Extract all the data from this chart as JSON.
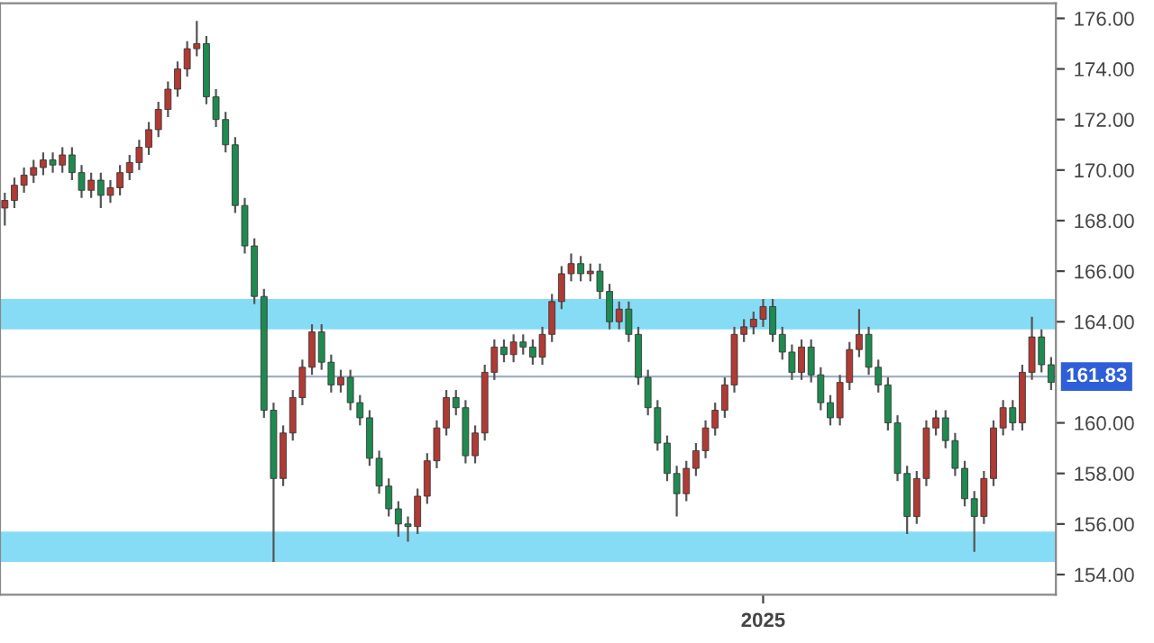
{
  "chart_data": {
    "type": "candlestick",
    "categories": [
      null,
      null,
      null,
      null,
      null,
      null,
      null,
      null,
      null,
      null,
      null,
      null,
      null,
      null,
      null,
      null,
      null,
      null,
      null,
      null,
      null,
      null,
      null,
      null,
      null,
      null,
      null,
      null,
      null,
      null,
      null,
      null,
      null,
      null,
      null,
      null,
      null,
      null,
      null,
      null,
      null,
      null,
      null,
      null,
      null,
      null,
      null,
      null,
      null,
      null,
      null,
      null,
      null,
      null,
      null,
      null,
      null,
      null,
      null,
      null,
      null,
      null,
      null,
      null,
      null,
      null,
      null,
      null,
      null,
      null,
      null,
      null,
      null,
      null,
      null,
      null,
      null,
      null,
      null,
      "2025",
      null,
      null,
      null,
      null,
      null,
      null,
      null,
      null,
      null,
      null,
      null,
      null,
      null,
      null,
      null,
      null,
      null,
      null,
      null,
      null,
      null,
      null,
      null,
      null,
      null,
      null,
      null,
      null,
      null,
      null
    ],
    "ohlc": [
      [
        168.5,
        169.1,
        167.8,
        168.8
      ],
      [
        168.8,
        169.7,
        168.5,
        169.4
      ],
      [
        169.4,
        170.1,
        169.1,
        169.8
      ],
      [
        169.8,
        170.4,
        169.5,
        170.1
      ],
      [
        170.1,
        170.7,
        169.8,
        170.4
      ],
      [
        170.4,
        170.7,
        169.9,
        170.2
      ],
      [
        170.2,
        170.9,
        169.9,
        170.6
      ],
      [
        170.6,
        170.9,
        169.6,
        169.9
      ],
      [
        169.9,
        170.2,
        168.9,
        169.2
      ],
      [
        169.2,
        169.9,
        168.9,
        169.6
      ],
      [
        169.6,
        169.9,
        168.5,
        169.0
      ],
      [
        169.0,
        169.6,
        168.7,
        169.3
      ],
      [
        169.3,
        170.2,
        169.0,
        169.9
      ],
      [
        169.9,
        170.6,
        169.6,
        170.3
      ],
      [
        170.3,
        171.2,
        170.0,
        170.9
      ],
      [
        170.9,
        171.9,
        170.6,
        171.6
      ],
      [
        171.6,
        172.7,
        171.3,
        172.4
      ],
      [
        172.4,
        173.5,
        172.1,
        173.2
      ],
      [
        173.2,
        174.3,
        172.9,
        174.0
      ],
      [
        174.0,
        175.1,
        173.7,
        174.8
      ],
      [
        174.8,
        175.9,
        174.5,
        175.0
      ],
      [
        175.0,
        175.3,
        172.6,
        172.9
      ],
      [
        172.9,
        173.2,
        171.7,
        172.0
      ],
      [
        172.0,
        172.3,
        170.7,
        171.0
      ],
      [
        171.0,
        171.3,
        168.3,
        168.6
      ],
      [
        168.6,
        168.9,
        166.7,
        167.0
      ],
      [
        167.0,
        167.3,
        164.7,
        165.0
      ],
      [
        165.0,
        165.3,
        160.2,
        160.5
      ],
      [
        160.5,
        160.8,
        154.5,
        157.8
      ],
      [
        157.8,
        159.9,
        157.5,
        159.6
      ],
      [
        159.6,
        161.3,
        159.3,
        161.0
      ],
      [
        161.0,
        162.5,
        160.7,
        162.2
      ],
      [
        162.2,
        163.9,
        161.9,
        163.6
      ],
      [
        163.6,
        163.9,
        162.1,
        162.4
      ],
      [
        162.4,
        162.7,
        161.2,
        161.5
      ],
      [
        161.5,
        162.1,
        161.2,
        161.8
      ],
      [
        161.8,
        162.1,
        160.5,
        160.8
      ],
      [
        160.8,
        161.1,
        159.9,
        160.2
      ],
      [
        160.2,
        160.5,
        158.3,
        158.6
      ],
      [
        158.6,
        158.9,
        157.2,
        157.5
      ],
      [
        157.5,
        157.8,
        156.3,
        156.6
      ],
      [
        156.6,
        156.9,
        155.5,
        156.0
      ],
      [
        156.0,
        156.3,
        155.3,
        155.9
      ],
      [
        155.9,
        157.4,
        155.6,
        157.1
      ],
      [
        157.1,
        158.8,
        156.8,
        158.5
      ],
      [
        158.5,
        160.1,
        158.2,
        159.8
      ],
      [
        159.8,
        161.3,
        159.5,
        161.0
      ],
      [
        161.0,
        161.3,
        160.3,
        160.6
      ],
      [
        160.6,
        160.9,
        158.4,
        158.7
      ],
      [
        158.7,
        159.9,
        158.4,
        159.6
      ],
      [
        159.6,
        162.3,
        159.3,
        162.0
      ],
      [
        162.0,
        163.3,
        161.7,
        163.0
      ],
      [
        163.0,
        163.3,
        162.4,
        162.7
      ],
      [
        162.7,
        163.5,
        162.4,
        163.2
      ],
      [
        163.2,
        163.5,
        162.7,
        163.0
      ],
      [
        163.0,
        163.3,
        162.3,
        162.6
      ],
      [
        162.6,
        163.8,
        162.3,
        163.5
      ],
      [
        163.5,
        165.1,
        163.2,
        164.8
      ],
      [
        164.8,
        166.2,
        164.5,
        165.9
      ],
      [
        165.9,
        166.7,
        165.6,
        166.3
      ],
      [
        166.3,
        166.6,
        165.6,
        165.9
      ],
      [
        165.9,
        166.3,
        165.6,
        166.0
      ],
      [
        166.0,
        166.3,
        164.9,
        165.2
      ],
      [
        165.2,
        165.5,
        163.7,
        164.0
      ],
      [
        164.0,
        164.8,
        163.7,
        164.5
      ],
      [
        164.5,
        164.8,
        163.2,
        163.5
      ],
      [
        163.5,
        163.8,
        161.5,
        161.8
      ],
      [
        161.8,
        162.1,
        160.3,
        160.6
      ],
      [
        160.6,
        160.9,
        158.9,
        159.2
      ],
      [
        159.2,
        159.5,
        157.7,
        158.0
      ],
      [
        158.0,
        158.3,
        156.3,
        157.2
      ],
      [
        157.2,
        158.5,
        156.9,
        158.2
      ],
      [
        158.2,
        159.2,
        157.9,
        158.9
      ],
      [
        158.9,
        160.1,
        158.6,
        159.8
      ],
      [
        159.8,
        160.8,
        159.5,
        160.5
      ],
      [
        160.5,
        161.8,
        160.2,
        161.5
      ],
      [
        161.5,
        163.8,
        161.2,
        163.5
      ],
      [
        163.5,
        164.1,
        163.2,
        163.8
      ],
      [
        163.8,
        164.4,
        163.5,
        164.1
      ],
      [
        164.1,
        164.9,
        163.8,
        164.6
      ],
      [
        164.6,
        164.9,
        163.2,
        163.5
      ],
      [
        163.5,
        163.8,
        162.5,
        162.8
      ],
      [
        162.8,
        163.1,
        161.7,
        162.0
      ],
      [
        162.0,
        163.3,
        161.7,
        163.0
      ],
      [
        163.0,
        163.3,
        161.6,
        161.9
      ],
      [
        161.9,
        162.2,
        160.5,
        160.8
      ],
      [
        160.8,
        161.1,
        159.9,
        160.2
      ],
      [
        160.2,
        161.9,
        159.9,
        161.6
      ],
      [
        161.6,
        163.2,
        161.3,
        162.9
      ],
      [
        162.9,
        164.5,
        162.6,
        163.5
      ],
      [
        163.5,
        163.8,
        161.9,
        162.2
      ],
      [
        162.2,
        162.5,
        161.2,
        161.5
      ],
      [
        161.5,
        161.8,
        159.7,
        160.0
      ],
      [
        160.0,
        160.3,
        157.7,
        158.0
      ],
      [
        158.0,
        158.3,
        155.6,
        156.3
      ],
      [
        156.3,
        158.1,
        156.0,
        157.8
      ],
      [
        157.8,
        160.1,
        157.5,
        159.8
      ],
      [
        159.8,
        160.5,
        159.5,
        160.2
      ],
      [
        160.2,
        160.5,
        159.0,
        159.3
      ],
      [
        159.3,
        159.6,
        157.9,
        158.2
      ],
      [
        158.2,
        158.5,
        156.7,
        157.0
      ],
      [
        157.0,
        157.3,
        154.9,
        156.3
      ],
      [
        156.3,
        158.1,
        156.0,
        157.8
      ],
      [
        157.8,
        160.1,
        157.5,
        159.8
      ],
      [
        159.8,
        160.9,
        159.5,
        160.6
      ],
      [
        160.6,
        160.9,
        159.7,
        160.0
      ],
      [
        160.0,
        162.3,
        159.7,
        162.0
      ],
      [
        162.0,
        164.2,
        161.7,
        163.4
      ],
      [
        163.4,
        163.7,
        162.0,
        162.3
      ],
      [
        162.3,
        162.6,
        161.3,
        161.6
      ]
    ],
    "colors": [
      "#b03a34",
      "#b03a34",
      "#b03a34",
      "#b03a34",
      "#b03a34",
      "#1f8a50",
      "#b03a34",
      "#1f8a50",
      "#1f8a50",
      "#b03a34",
      "#1f8a50",
      "#b03a34",
      "#b03a34",
      "#b03a34",
      "#b03a34",
      "#b03a34",
      "#b03a34",
      "#b03a34",
      "#b03a34",
      "#b03a34",
      "#b03a34",
      "#1f8a50",
      "#1f8a50",
      "#1f8a50",
      "#1f8a50",
      "#1f8a50",
      "#1f8a50",
      "#1f8a50",
      "#1f8a50",
      "#b03a34",
      "#b03a34",
      "#b03a34",
      "#b03a34",
      "#1f8a50",
      "#1f8a50",
      "#b03a34",
      "#1f8a50",
      "#1f8a50",
      "#1f8a50",
      "#1f8a50",
      "#1f8a50",
      "#1f8a50",
      "#1f8a50",
      "#b03a34",
      "#b03a34",
      "#b03a34",
      "#b03a34",
      "#1f8a50",
      "#1f8a50",
      "#b03a34",
      "#b03a34",
      "#b03a34",
      "#1f8a50",
      "#b03a34",
      "#1f8a50",
      "#1f8a50",
      "#b03a34",
      "#b03a34",
      "#b03a34",
      "#b03a34",
      "#1f8a50",
      "#b03a34",
      "#1f8a50",
      "#1f8a50",
      "#b03a34",
      "#1f8a50",
      "#1f8a50",
      "#1f8a50",
      "#1f8a50",
      "#1f8a50",
      "#1f8a50",
      "#b03a34",
      "#b03a34",
      "#b03a34",
      "#b03a34",
      "#b03a34",
      "#b03a34",
      "#b03a34",
      "#b03a34",
      "#b03a34",
      "#1f8a50",
      "#1f8a50",
      "#1f8a50",
      "#b03a34",
      "#1f8a50",
      "#1f8a50",
      "#1f8a50",
      "#b03a34",
      "#b03a34",
      "#b03a34",
      "#1f8a50",
      "#1f8a50",
      "#1f8a50",
      "#1f8a50",
      "#1f8a50",
      "#b03a34",
      "#b03a34",
      "#b03a34",
      "#1f8a50",
      "#1f8a50",
      "#1f8a50",
      "#1f8a50",
      "#b03a34",
      "#b03a34",
      "#b03a34",
      "#1f8a50",
      "#b03a34",
      "#b03a34",
      "#1f8a50",
      "#1f8a50"
    ],
    "ylim": [
      153.2,
      176.6
    ],
    "yticks": [
      {
        "value": 154,
        "label": "154.00"
      },
      {
        "value": 156,
        "label": "156.00"
      },
      {
        "value": 158,
        "label": "158.00"
      },
      {
        "value": 160,
        "label": "160.00"
      },
      {
        "value": 164,
        "label": "164.00"
      },
      {
        "value": 166,
        "label": "166.00"
      },
      {
        "value": 168,
        "label": "168.00"
      },
      {
        "value": 170,
        "label": "170.00"
      },
      {
        "value": 172,
        "label": "172.00"
      },
      {
        "value": 174,
        "label": "174.00"
      },
      {
        "value": 176,
        "label": "176.00"
      }
    ],
    "ref_lines": [
      {
        "axis": "y",
        "value": 161.83,
        "label": "161.83",
        "color": "#9fb0c8"
      }
    ],
    "bands": [
      {
        "axis": "y",
        "from": 163.7,
        "to": 164.9,
        "color": "#87dcf5"
      },
      {
        "axis": "y",
        "from": 154.5,
        "to": 155.7,
        "color": "#87dcf5"
      }
    ],
    "grid": false
  }
}
